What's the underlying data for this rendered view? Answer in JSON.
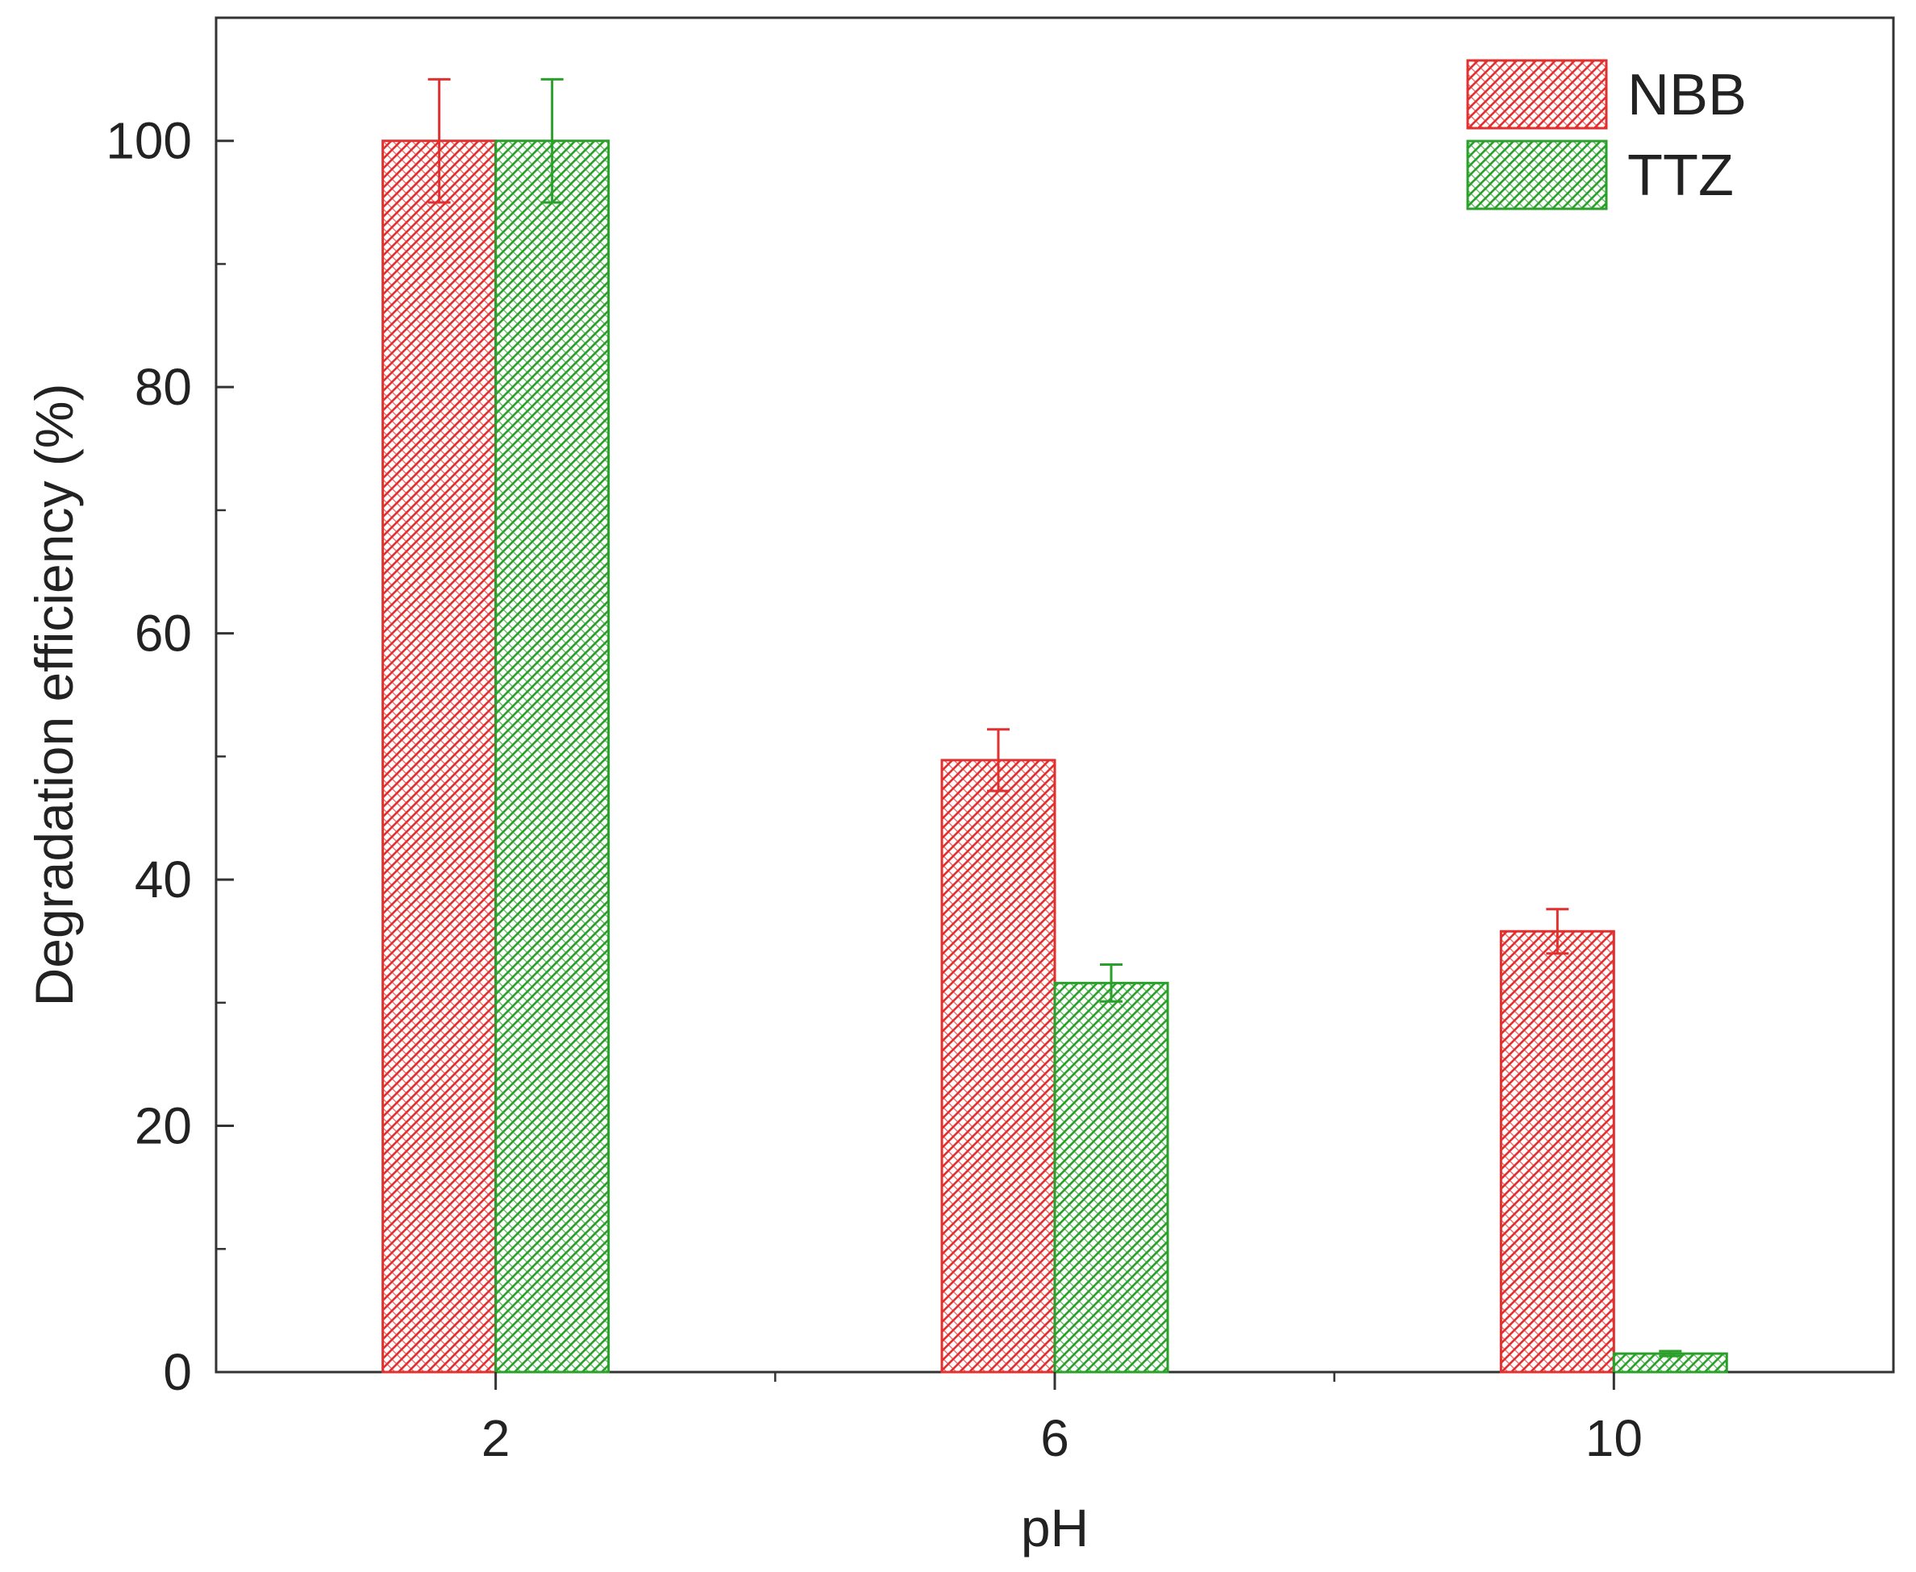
{
  "chart_data": {
    "type": "bar",
    "title": "",
    "xlabel": "pH",
    "ylabel": "Degradation efficiency (%)",
    "categories": [
      "2",
      "6",
      "10"
    ],
    "ylim": [
      0,
      110
    ],
    "yticks": [
      0,
      20,
      40,
      60,
      80,
      100
    ],
    "series": [
      {
        "name": "NBB",
        "color": "#e03030",
        "values": [
          100,
          49.7,
          35.8
        ],
        "errors": [
          5,
          2.5,
          1.8
        ]
      },
      {
        "name": "TTZ",
        "color": "#2aa02a",
        "values": [
          100,
          31.6,
          1.5
        ],
        "errors": [
          5,
          1.5,
          0.2
        ]
      }
    ],
    "legend": "top-right",
    "grid": false,
    "fill_pattern": "crosshatch"
  }
}
